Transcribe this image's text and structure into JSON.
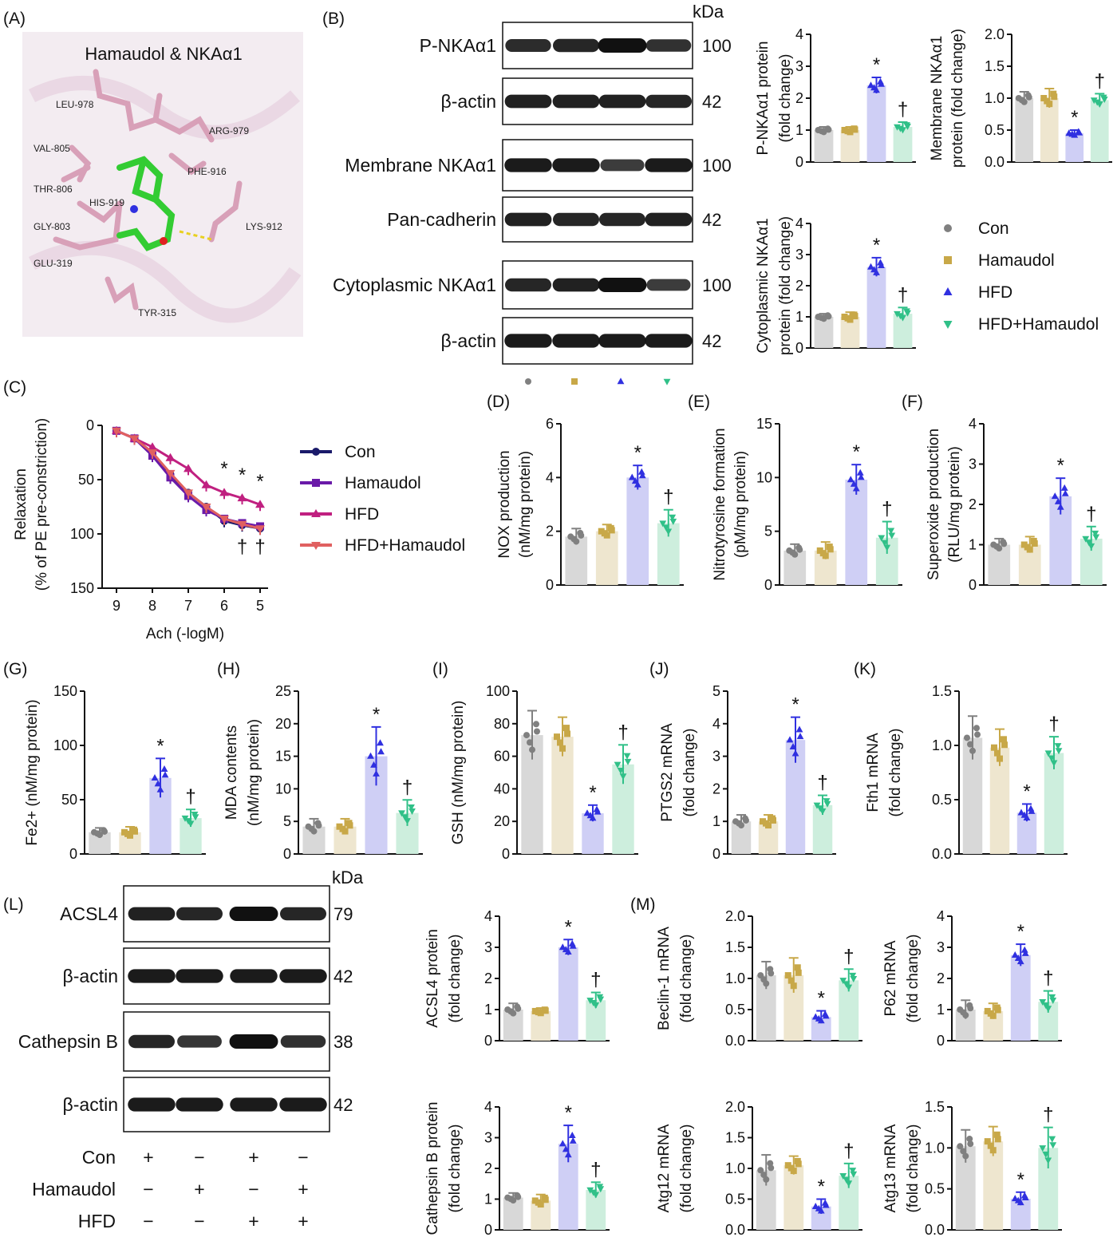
{
  "colors": {
    "con": "#808080",
    "hamaudol": "#c8a848",
    "hfd": "#3030e0",
    "hfdham": "#30c088",
    "con_bar": "#d8d8d8",
    "ham_bar": "#eee6cf",
    "hfd_bar": "#cfcff5",
    "hfdham_bar": "#cdeedd",
    "line_con": "#1a1a6a",
    "line_ham": "#6a1aa8",
    "line_hfd": "#c02080",
    "line_hfdham": "#e06060"
  },
  "panel_labels": [
    "(A)",
    "(B)",
    "(C)",
    "(D)",
    "(E)",
    "(F)",
    "(G)",
    "(H)",
    "(I)",
    "(J)",
    "(K)",
    "(L)",
    "(M)"
  ],
  "panelA": {
    "title": "Hamaudol & NKAα1",
    "residues": [
      "LEU-978",
      "ARG-979",
      "VAL-805",
      "PHE-916",
      "THR-806",
      "HIS-919",
      "GLY-803",
      "LYS-912",
      "GLU-319",
      "TYR-315"
    ]
  },
  "panelB": {
    "kda_header": "kDa",
    "blots": [
      {
        "label": "P-NKAα1",
        "kda": "100",
        "bands": [
          0.75,
          0.8,
          1.0,
          0.7
        ]
      },
      {
        "label": "β-actin",
        "kda": "42",
        "bands": [
          0.85,
          0.85,
          0.85,
          0.8
        ]
      },
      {
        "label": "Membrane NKAα1",
        "kda": "100",
        "bands": [
          0.9,
          0.9,
          0.6,
          0.9
        ]
      },
      {
        "label": "Pan-cadherin",
        "kda": "42",
        "bands": [
          0.85,
          0.8,
          0.8,
          0.85
        ]
      },
      {
        "label": "Cytoplasmic NKAα1",
        "kda": "100",
        "bands": [
          0.8,
          0.85,
          1.0,
          0.6
        ]
      },
      {
        "label": "β-actin",
        "kda": "42",
        "bands": [
          0.9,
          0.9,
          0.9,
          0.9
        ]
      }
    ],
    "legend": [
      "Con",
      "Hamaudol",
      "HFD",
      "HFD+Hamaudol"
    ]
  },
  "panelC": {
    "xlabel": "Ach (-logM)",
    "ylabel1": "Relaxation",
    "ylabel2": "(% of PE pre-constriction)",
    "xticks": [
      "9",
      "8",
      "7",
      "6",
      "5"
    ],
    "yticks": [
      "0",
      "50",
      "100",
      "150"
    ],
    "legend": [
      "Con",
      "Hamaudol",
      "HFD",
      "HFD+Hamaudol"
    ],
    "star": "*",
    "dagger": "†"
  },
  "chart_data": [
    {
      "type": "bar",
      "id": "b1",
      "ylabel": [
        "P-NKAα1 protein",
        "(fold change)"
      ],
      "ylim": [
        0,
        4
      ],
      "yticks": [
        "0",
        "1",
        "2",
        "3",
        "4"
      ],
      "categories": [
        "Con",
        "Hamaudol",
        "HFD",
        "HFD+Hamaudol"
      ],
      "values": [
        1.0,
        1.0,
        2.4,
        1.1
      ],
      "errors": [
        0.1,
        0.1,
        0.25,
        0.15
      ],
      "sig": [
        "",
        "",
        "*",
        "†"
      ]
    },
    {
      "type": "bar",
      "id": "b2",
      "ylabel": [
        "Membrane NKAα1",
        "protein (fold change)"
      ],
      "ylim": [
        0,
        2
      ],
      "yticks": [
        "0.0",
        "0.5",
        "1.0",
        "1.5",
        "2.0"
      ],
      "categories": [
        "Con",
        "Hamaudol",
        "HFD",
        "HFD+Hamaudol"
      ],
      "values": [
        1.0,
        1.0,
        0.45,
        0.97
      ],
      "errors": [
        0.1,
        0.15,
        0.05,
        0.1
      ],
      "sig": [
        "",
        "",
        "*",
        "†"
      ]
    },
    {
      "type": "bar",
      "id": "b3",
      "ylabel": [
        "Cytoplasmic NKAα1",
        "protein (fold change)"
      ],
      "ylim": [
        0,
        4
      ],
      "yticks": [
        "0",
        "1",
        "2",
        "3",
        "4"
      ],
      "categories": [
        "Con",
        "Hamaudol",
        "HFD",
        "HFD+Hamaudol"
      ],
      "values": [
        1.0,
        1.0,
        2.6,
        1.1
      ],
      "errors": [
        0.1,
        0.15,
        0.3,
        0.2
      ],
      "sig": [
        "",
        "",
        "*",
        "†"
      ]
    },
    {
      "type": "line",
      "id": "C",
      "x": [
        9,
        8.5,
        8,
        7.5,
        7,
        6.5,
        6,
        5.5,
        5
      ],
      "series": [
        {
          "name": "Con",
          "values": [
            5,
            12,
            25,
            45,
            62,
            75,
            88,
            92,
            95
          ]
        },
        {
          "name": "Hamaudol",
          "values": [
            5,
            12,
            28,
            48,
            65,
            78,
            86,
            90,
            93
          ]
        },
        {
          "name": "HFD",
          "values": [
            5,
            12,
            20,
            30,
            40,
            55,
            62,
            67,
            73
          ]
        },
        {
          "name": "HFD+Hamaudol",
          "values": [
            5,
            12,
            25,
            44,
            62,
            75,
            86,
            91,
            95
          ]
        }
      ]
    },
    {
      "type": "bar",
      "id": "D",
      "ylabel": [
        "NOX production",
        "(nM/mg protein)"
      ],
      "ylim": [
        0,
        6
      ],
      "yticks": [
        "0",
        "2",
        "4",
        "6"
      ],
      "categories": [
        "Con",
        "Hamaudol",
        "HFD",
        "HFD+Hamaudol"
      ],
      "values": [
        1.8,
        2.0,
        4.0,
        2.3
      ],
      "errors": [
        0.3,
        0.25,
        0.45,
        0.5
      ],
      "sig": [
        "",
        "",
        "*",
        "†"
      ]
    },
    {
      "type": "bar",
      "id": "E",
      "ylabel": [
        "Nitrotyrosine formation",
        "(pM/mg protein)"
      ],
      "ylim": [
        0,
        15
      ],
      "yticks": [
        "0",
        "5",
        "10",
        "15"
      ],
      "categories": [
        "Con",
        "Hamaudol",
        "HFD",
        "HFD+Hamaudol"
      ],
      "values": [
        3.2,
        3.2,
        9.8,
        4.4
      ],
      "errors": [
        0.6,
        0.8,
        1.4,
        1.5
      ],
      "sig": [
        "",
        "",
        "*",
        "†"
      ]
    },
    {
      "type": "bar",
      "id": "F",
      "ylabel": [
        "Superoxide production",
        "(RLU/mg protein)"
      ],
      "ylim": [
        0,
        4
      ],
      "yticks": [
        "0",
        "1",
        "2",
        "3",
        "4"
      ],
      "categories": [
        "Con",
        "Hamaudol",
        "HFD",
        "HFD+Hamaudol"
      ],
      "values": [
        1.0,
        1.0,
        2.2,
        1.15
      ],
      "errors": [
        0.15,
        0.2,
        0.45,
        0.3
      ],
      "sig": [
        "",
        "",
        "*",
        "†"
      ]
    },
    {
      "type": "bar",
      "id": "G",
      "ylabel": [
        "Fe2+ (nM/mg protein)"
      ],
      "ylim": [
        0,
        150
      ],
      "yticks": [
        "0",
        "50",
        "100",
        "150"
      ],
      "categories": [
        "Con",
        "Hamaudol",
        "HFD",
        "HFD+Hamaudol"
      ],
      "values": [
        20,
        20,
        70,
        33
      ],
      "errors": [
        4,
        5,
        18,
        8
      ],
      "sig": [
        "",
        "",
        "*",
        "†"
      ]
    },
    {
      "type": "bar",
      "id": "H",
      "ylabel": [
        "MDA contents",
        "(nM/mg protein)"
      ],
      "ylim": [
        0,
        25
      ],
      "yticks": [
        "0",
        "5",
        "10",
        "15",
        "20",
        "25"
      ],
      "categories": [
        "Con",
        "Hamaudol",
        "HFD",
        "HFD+Hamaudol"
      ],
      "values": [
        4.2,
        4.2,
        15,
        6.3
      ],
      "errors": [
        1.2,
        1.2,
        4.5,
        2
      ],
      "sig": [
        "",
        "",
        "*",
        "†"
      ]
    },
    {
      "type": "bar",
      "id": "I",
      "ylabel": [
        "GSH (nM/mg protein)"
      ],
      "ylim": [
        0,
        100
      ],
      "yticks": [
        "0",
        "20",
        "40",
        "60",
        "80",
        "100"
      ],
      "categories": [
        "Con",
        "Hamaudol",
        "HFD",
        "HFD+Hamaudol"
      ],
      "values": [
        73,
        72,
        25,
        55
      ],
      "errors": [
        15,
        12,
        5,
        12
      ],
      "sig": [
        "",
        "",
        "*",
        "†"
      ]
    },
    {
      "type": "bar",
      "id": "J",
      "ylabel": [
        "PTGS2 mRNA",
        "(fold change)"
      ],
      "ylim": [
        0,
        5
      ],
      "yticks": [
        "0",
        "1",
        "2",
        "3",
        "4",
        "5"
      ],
      "categories": [
        "Con",
        "Hamaudol",
        "HFD",
        "HFD+Hamaudol"
      ],
      "values": [
        1.0,
        1.0,
        3.5,
        1.5
      ],
      "errors": [
        0.2,
        0.2,
        0.7,
        0.3
      ],
      "sig": [
        "",
        "",
        "*",
        "†"
      ]
    },
    {
      "type": "bar",
      "id": "K",
      "ylabel": [
        "Fth1 mRNA",
        "(fold change)"
      ],
      "ylim": [
        0,
        1.5
      ],
      "yticks": [
        "0.0",
        "0.5",
        "1.0",
        "1.5"
      ],
      "categories": [
        "Con",
        "Hamaudol",
        "HFD",
        "HFD+Hamaudol"
      ],
      "values": [
        1.07,
        0.98,
        0.38,
        0.93
      ],
      "errors": [
        0.2,
        0.17,
        0.08,
        0.15
      ],
      "sig": [
        "",
        "",
        "*",
        "†"
      ]
    },
    {
      "type": "bar",
      "id": "L1",
      "ylabel": [
        "ACSL4 protein",
        "(fold change)"
      ],
      "ylim": [
        0,
        4
      ],
      "yticks": [
        "0",
        "1",
        "2",
        "3",
        "4"
      ],
      "categories": [
        "Con",
        "Hamaudol",
        "HFD",
        "HFD+Hamaudol"
      ],
      "values": [
        1.0,
        0.95,
        3.0,
        1.3
      ],
      "errors": [
        0.2,
        0.1,
        0.25,
        0.25
      ],
      "sig": [
        "",
        "",
        "*",
        "†"
      ]
    },
    {
      "type": "bar",
      "id": "L2",
      "ylabel": [
        "Cathepsin B protein",
        "(fold change)"
      ],
      "ylim": [
        0,
        4
      ],
      "yticks": [
        "0",
        "1",
        "2",
        "3",
        "4"
      ],
      "categories": [
        "Con",
        "Hamaudol",
        "HFD",
        "HFD+Hamaudol"
      ],
      "values": [
        1.05,
        0.95,
        2.8,
        1.3
      ],
      "errors": [
        0.15,
        0.2,
        0.6,
        0.25
      ],
      "sig": [
        "",
        "",
        "*",
        "†"
      ]
    },
    {
      "type": "bar",
      "id": "M1",
      "ylabel": [
        "Beclin-1 mRNA",
        "(fold change)"
      ],
      "ylim": [
        0,
        2
      ],
      "yticks": [
        "0.0",
        "0.5",
        "1.0",
        "1.5",
        "2.0"
      ],
      "categories": [
        "Con",
        "Hamaudol",
        "HFD",
        "HFD+Hamaudol"
      ],
      "values": [
        1.05,
        1.05,
        0.38,
        0.97
      ],
      "errors": [
        0.22,
        0.28,
        0.1,
        0.18
      ],
      "sig": [
        "",
        "",
        "*",
        "†"
      ]
    },
    {
      "type": "bar",
      "id": "M2",
      "ylabel": [
        "P62 mRNA",
        "(fold change)"
      ],
      "ylim": [
        0,
        4
      ],
      "yticks": [
        "0",
        "1",
        "2",
        "3",
        "4"
      ],
      "categories": [
        "Con",
        "Hamaudol",
        "HFD",
        "HFD+Hamaudol"
      ],
      "values": [
        1.0,
        0.95,
        2.75,
        1.25
      ],
      "errors": [
        0.3,
        0.25,
        0.35,
        0.35
      ],
      "sig": [
        "",
        "",
        "*",
        "†"
      ]
    },
    {
      "type": "bar",
      "id": "M3",
      "ylabel": [
        "Atg12 mRNA",
        "(fold change)"
      ],
      "ylim": [
        0,
        2
      ],
      "yticks": [
        "0.0",
        "0.5",
        "1.0",
        "1.5",
        "2.0"
      ],
      "categories": [
        "Con",
        "Hamaudol",
        "HFD",
        "HFD+Hamaudol"
      ],
      "values": [
        0.97,
        1.05,
        0.38,
        0.88
      ],
      "errors": [
        0.25,
        0.15,
        0.12,
        0.2
      ],
      "sig": [
        "",
        "",
        "*",
        "†"
      ]
    },
    {
      "type": "bar",
      "id": "M4",
      "ylabel": [
        "Atg13 mRNA",
        "(fold change)"
      ],
      "ylim": [
        0,
        1.5
      ],
      "yticks": [
        "0.0",
        "0.5",
        "1.0",
        "1.5"
      ],
      "categories": [
        "Con",
        "Hamaudol",
        "HFD",
        "HFD+Hamaudol"
      ],
      "values": [
        1.02,
        1.08,
        0.38,
        1.0
      ],
      "errors": [
        0.2,
        0.18,
        0.08,
        0.25
      ],
      "sig": [
        "",
        "",
        "*",
        "†"
      ]
    }
  ],
  "panelL": {
    "kda_header": "kDa",
    "blots": [
      {
        "label": "ACSL4",
        "kda": "79",
        "bands": [
          0.85,
          0.8,
          1.0,
          0.8
        ]
      },
      {
        "label": "β-actin",
        "kda": "42",
        "bands": [
          0.9,
          0.9,
          0.9,
          0.9
        ]
      },
      {
        "label": "Cathepsin B",
        "kda": "38",
        "bands": [
          0.8,
          0.65,
          1.0,
          0.7
        ]
      },
      {
        "label": "β-actin",
        "kda": "42",
        "bands": [
          0.9,
          0.9,
          0.9,
          0.9
        ]
      }
    ],
    "treatment_rows": [
      {
        "label": "Con",
        "marks": [
          "+",
          "−",
          "+",
          "−"
        ]
      },
      {
        "label": "Hamaudol",
        "marks": [
          "−",
          "+",
          "−",
          "+"
        ]
      },
      {
        "label": "HFD",
        "marks": [
          "−",
          "−",
          "+",
          "+"
        ]
      }
    ]
  }
}
